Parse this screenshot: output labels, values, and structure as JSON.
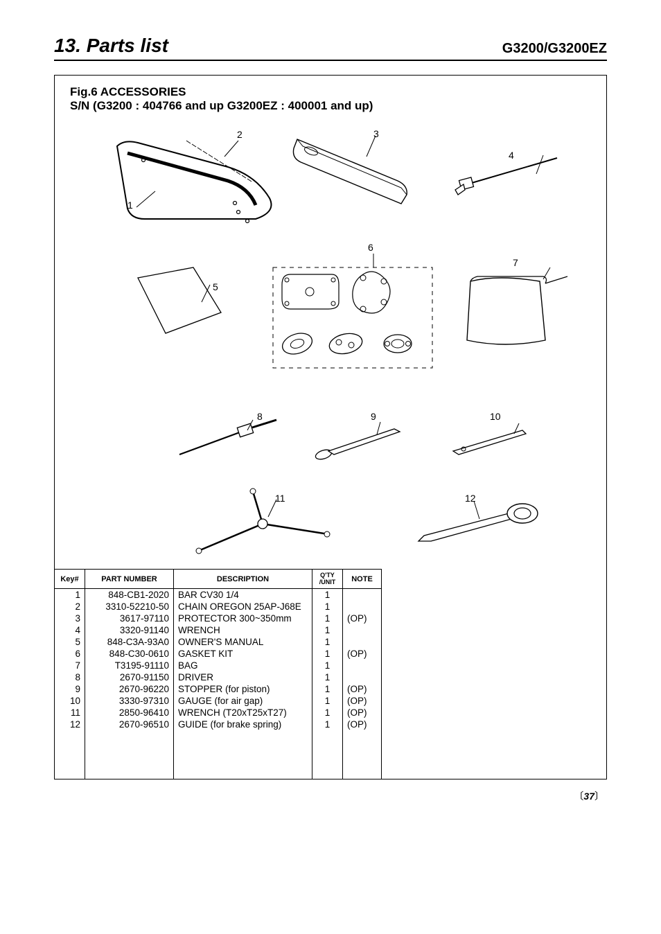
{
  "header": {
    "section_title": "13. Parts list",
    "model": "G3200/G3200EZ"
  },
  "figure": {
    "title": "Fig.6 ACCESSORIES",
    "sn_line": "S/N (G3200 : 404766  and up     G3200EZ : 400001  and up)"
  },
  "callouts": [
    "1",
    "2",
    "3",
    "4",
    "5",
    "6",
    "7",
    "8",
    "9",
    "10",
    "11",
    "12"
  ],
  "table": {
    "headers": {
      "key": "Key#",
      "part": "PART NUMBER",
      "desc": "DESCRIPTION",
      "qty": "Q'TY /UNIT",
      "note": "NOTE"
    },
    "rows": [
      {
        "key": "1",
        "part": "848-CB1-2020",
        "desc": "BAR CV30 1/4",
        "qty": "1",
        "note": ""
      },
      {
        "key": "2",
        "part": "3310-52210-50",
        "desc": "CHAIN OREGON 25AP-J68E",
        "qty": "1",
        "note": ""
      },
      {
        "key": "3",
        "part": "3617-97110",
        "desc": "PROTECTOR 300~350mm",
        "qty": "1",
        "note": "(OP)"
      },
      {
        "key": "4",
        "part": "3320-91140",
        "desc": "WRENCH",
        "qty": "1",
        "note": ""
      },
      {
        "key": "5",
        "part": "848-C3A-93A0",
        "desc": "OWNER'S MANUAL",
        "qty": "1",
        "note": ""
      },
      {
        "key": "6",
        "part": "848-C30-0610",
        "desc": "GASKET KIT",
        "qty": "1",
        "note": "(OP)"
      },
      {
        "key": "7",
        "part": "T3195-91110",
        "desc": "BAG",
        "qty": "1",
        "note": ""
      },
      {
        "key": "8",
        "part": "2670-91150",
        "desc": "DRIVER",
        "qty": "1",
        "note": ""
      },
      {
        "key": "9",
        "part": "2670-96220",
        "desc": "STOPPER (for piston)",
        "qty": "1",
        "note": "(OP)"
      },
      {
        "key": "10",
        "part": "3330-97310",
        "desc": "GAUGE (for air gap)",
        "qty": "1",
        "note": "(OP)"
      },
      {
        "key": "11",
        "part": "2850-96410",
        "desc": "WRENCH (T20xT25xT27)",
        "qty": "1",
        "note": "(OP)"
      },
      {
        "key": "12",
        "part": "2670-96510",
        "desc": "GUIDE (for brake spring)",
        "qty": "1",
        "note": "(OP)"
      }
    ]
  },
  "page_number": "37",
  "colors": {
    "text": "#000000",
    "bg": "#ffffff",
    "stroke": "#000000"
  }
}
